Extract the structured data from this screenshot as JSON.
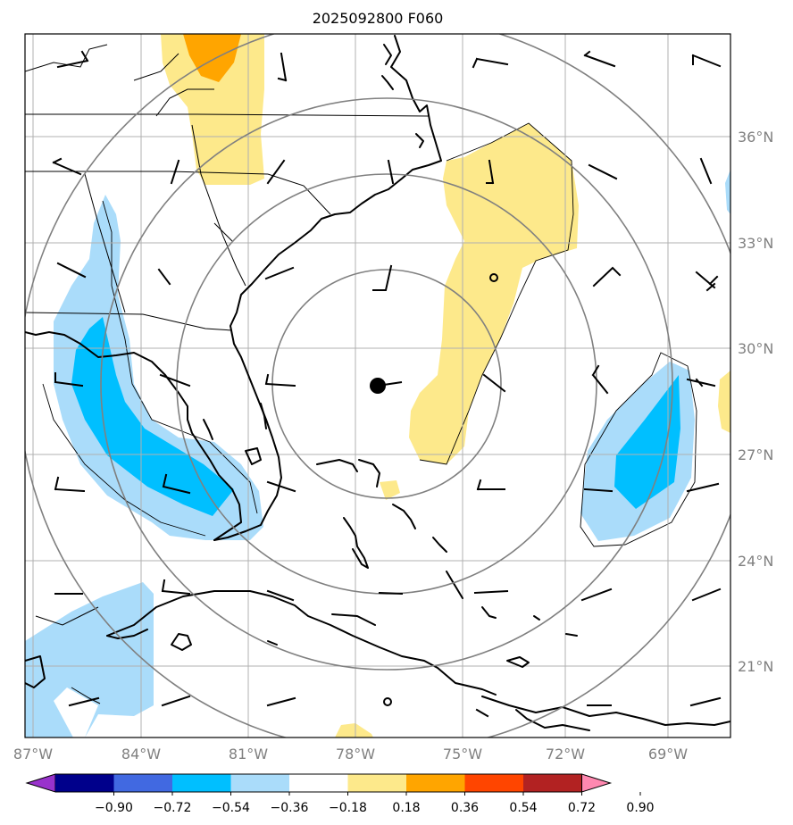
{
  "title": "2025092800 F060",
  "colors": {
    "light_blue": "#aadcfa",
    "blue": "#00bfff",
    "light_yellow": "#fde98b",
    "orange": "#ffa500",
    "ring": "#808080",
    "grid": "#b0b0b0",
    "axis_text": "#808080"
  },
  "lon_labels": [
    "87°W",
    "84°W",
    "81°W",
    "78°W",
    "75°W",
    "72°W",
    "69°W"
  ],
  "lat_labels": [
    "36°N",
    "33°N",
    "30°N",
    "27°N",
    "24°N",
    "21°N"
  ],
  "colorbar": {
    "colors": [
      "#9932cc",
      "#00008b",
      "#4169e1",
      "#00bfff",
      "#aadcfa",
      "#ffffff",
      "#fde98b",
      "#ffa500",
      "#ff4500",
      "#b22222",
      "#ff88b0"
    ],
    "ticks": [
      "−0.90",
      "−0.72",
      "−0.54",
      "−0.36",
      "−0.18",
      "0.18",
      "0.36",
      "0.54",
      "0.72",
      "0.90"
    ]
  },
  "storm_center": {
    "lon": -77.7,
    "lat": 28.9
  },
  "range_rings": 4
}
